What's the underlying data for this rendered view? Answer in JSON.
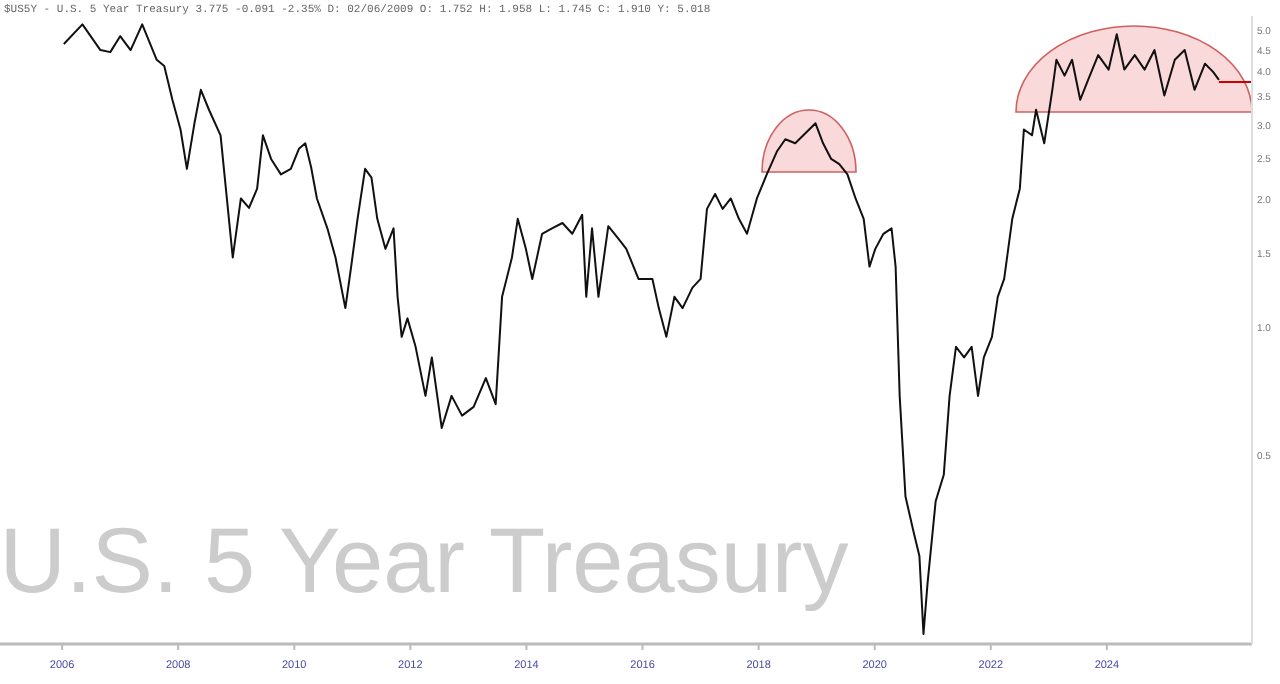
{
  "chart_data": {
    "type": "line",
    "title": "U.S. 5 Year Treasury",
    "subtitle": "$US5Y - U.S. 5 Year Treasury 3.775 -0.091 -2.35% D: 02/06/2009 O: 1.752 H: 1.958 L: 1.745 C: 1.910 Y: 5.018",
    "log": "y",
    "xlim": [
      2004.93,
      2026.5
    ],
    "ylim": [
      0.18,
      5.4
    ],
    "xticks": [
      2006,
      2008,
      2010,
      2012,
      2014,
      2016,
      2018,
      2020,
      2022,
      2024
    ],
    "yticks": [
      {
        "value": 0.5,
        "label": "0.5"
      },
      {
        "value": 1,
        "label": "1.0"
      },
      {
        "value": 1.5,
        "label": "1.5"
      },
      {
        "value": 2,
        "label": "2.0"
      },
      {
        "value": 2.5,
        "label": "2.5"
      },
      {
        "value": 3,
        "label": "3.0"
      },
      {
        "value": 3.5,
        "label": "3.5"
      },
      {
        "value": 4,
        "label": "4.0"
      },
      {
        "value": 4.5,
        "label": "4.5"
      },
      {
        "value": 5,
        "label": "5.0"
      }
    ],
    "grid": false,
    "marker": "none",
    "line_style": "solid",
    "series": [
      {
        "color": "#cc0000",
        "x": [
          2025.93,
          2026.5
        ],
        "values": [
          3.775,
          3.775
        ]
      },
      {
        "color": "#111111",
        "x": [
          2006.03,
          2006.35,
          2006.66,
          2006.83,
          2007.0,
          2007.18,
          2007.38,
          2007.63,
          2007.76,
          2007.9,
          2008.04,
          2008.15,
          2008.28,
          2008.39,
          2008.53,
          2008.73,
          2008.94,
          2009.08,
          2009.22,
          2009.36,
          2009.46,
          2009.6,
          2009.77,
          2009.94,
          2010.08,
          2010.19,
          2010.29,
          2010.39,
          2010.57,
          2010.71,
          2010.88,
          2010.98,
          2011.09,
          2011.22,
          2011.33,
          2011.43,
          2011.57,
          2011.71,
          2011.78,
          2011.85,
          2011.95,
          2012.09,
          2012.26,
          2012.37,
          2012.54,
          2012.71,
          2012.89,
          2013.09,
          2013.3,
          2013.47,
          2013.58,
          2013.75,
          2013.85,
          2013.99,
          2014.1,
          2014.27,
          2014.44,
          2014.62,
          2014.79,
          2014.96,
          2015.03,
          2015.13,
          2015.24,
          2015.41,
          2015.58,
          2015.72,
          2015.93,
          2016.17,
          2016.28,
          2016.41,
          2016.55,
          2016.69,
          2016.86,
          2017.0,
          2017.11,
          2017.25,
          2017.38,
          2017.52,
          2017.66,
          2017.8,
          2017.97,
          2018.14,
          2018.32,
          2018.46,
          2018.63,
          2018.77,
          2018.98,
          2019.11,
          2019.25,
          2019.39,
          2019.53,
          2019.67,
          2019.81,
          2019.91,
          2020.01,
          2020.15,
          2020.29,
          2020.36,
          2020.43,
          2020.53,
          2020.67,
          2020.77,
          2020.84,
          2020.91,
          2021.05,
          2021.19,
          2021.29,
          2021.4,
          2021.54,
          2021.67,
          2021.78,
          2021.88,
          2022.02,
          2022.12,
          2022.23,
          2022.37,
          2022.5,
          2022.57,
          2022.71,
          2022.78,
          2022.92,
          2023.06,
          2023.13,
          2023.27,
          2023.4,
          2023.54,
          2023.68,
          2023.85,
          2024.03,
          2024.17,
          2024.3,
          2024.48,
          2024.65,
          2024.82,
          2024.99,
          2025.17,
          2025.34,
          2025.51,
          2025.69,
          2025.83,
          2025.93
        ],
        "values": [
          4.64,
          5.16,
          4.49,
          4.44,
          4.84,
          4.49,
          5.16,
          4.26,
          4.12,
          3.43,
          2.92,
          2.36,
          3.02,
          3.62,
          3.25,
          2.83,
          1.46,
          2.01,
          1.91,
          2.12,
          2.83,
          2.49,
          2.29,
          2.36,
          2.63,
          2.71,
          2.38,
          2.01,
          1.71,
          1.46,
          1.11,
          1.39,
          1.8,
          2.36,
          2.25,
          1.8,
          1.53,
          1.71,
          1.18,
          0.95,
          1.05,
          0.9,
          0.69,
          0.85,
          0.58,
          0.69,
          0.62,
          0.65,
          0.76,
          0.66,
          1.18,
          1.46,
          1.8,
          1.53,
          1.3,
          1.66,
          1.71,
          1.76,
          1.66,
          1.84,
          1.18,
          1.71,
          1.18,
          1.73,
          1.62,
          1.53,
          1.3,
          1.3,
          1.11,
          0.95,
          1.18,
          1.11,
          1.24,
          1.3,
          1.9,
          2.06,
          1.9,
          2.01,
          1.8,
          1.66,
          2.01,
          2.29,
          2.6,
          2.77,
          2.71,
          2.83,
          3.02,
          2.71,
          2.49,
          2.42,
          2.29,
          2.01,
          1.8,
          1.39,
          1.53,
          1.66,
          1.71,
          1.39,
          0.69,
          0.4,
          0.33,
          0.29,
          0.19,
          0.25,
          0.39,
          0.45,
          0.69,
          0.9,
          0.85,
          0.9,
          0.69,
          0.85,
          0.95,
          1.18,
          1.3,
          1.8,
          2.12,
          2.92,
          2.83,
          3.25,
          2.71,
          3.62,
          4.26,
          3.91,
          4.26,
          3.43,
          3.83,
          4.37,
          4.04,
          4.89,
          4.04,
          4.37,
          4.04,
          4.49,
          3.51,
          4.26,
          4.49,
          3.62,
          4.17,
          3.99,
          3.82
        ]
      }
    ]
  }
}
